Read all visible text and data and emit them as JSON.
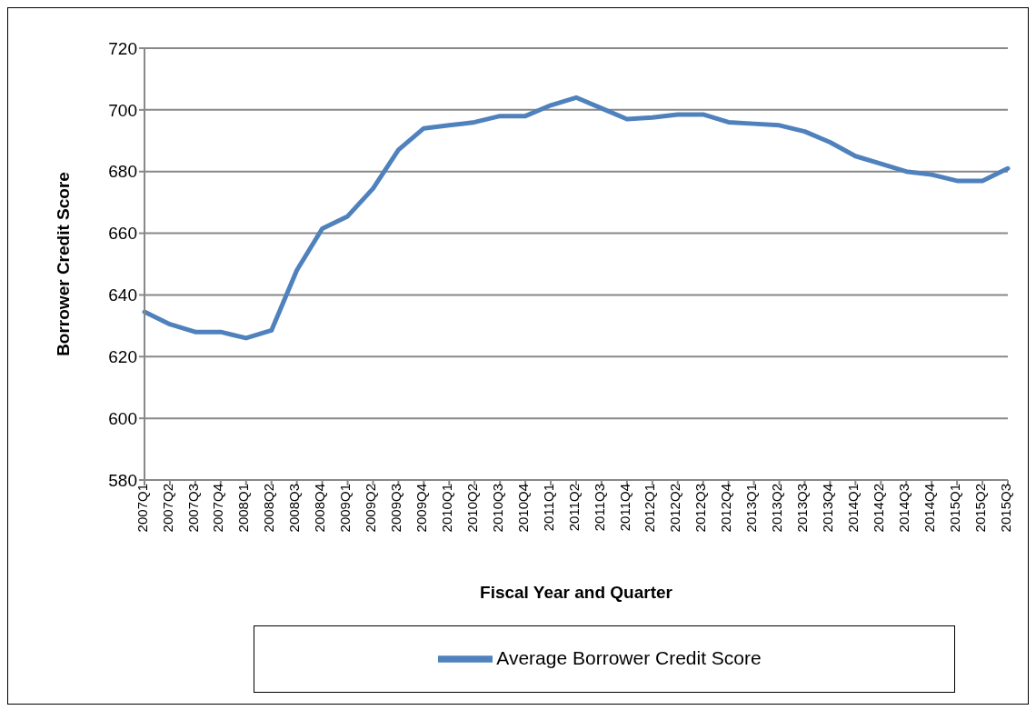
{
  "chart_data": {
    "type": "line",
    "xlabel": "Fiscal Year and Quarter",
    "ylabel": "Borrower Credit Score",
    "categories": [
      "2007Q1",
      "2007Q2",
      "2007Q3",
      "2007Q4",
      "2008Q1",
      "2008Q2",
      "2008Q3",
      "2008Q4",
      "2009Q1",
      "2009Q2",
      "2009Q3",
      "2009Q4",
      "2010Q1",
      "2010Q2",
      "2010Q3",
      "2010Q4",
      "2011Q1",
      "2011Q2",
      "2011Q3",
      "2011Q4",
      "2012Q1",
      "2012Q2",
      "2012Q3",
      "2012Q4",
      "2013Q1",
      "2013Q2",
      "2013Q3",
      "2013Q4",
      "2014Q1",
      "2014Q2",
      "2014Q3",
      "2014Q4",
      "2015Q1",
      "2015Q2",
      "2015Q3"
    ],
    "series": [
      {
        "name": "Average Borrower Credit Score",
        "color": "#4f81bd",
        "values": [
          634.5,
          630.5,
          628,
          628,
          626,
          628.5,
          648,
          661.5,
          665.5,
          674.5,
          687,
          694,
          695,
          696,
          698,
          698,
          701.5,
          704,
          700.5,
          697,
          697.5,
          698.5,
          698.5,
          696,
          695.5,
          695,
          693,
          689.5,
          685,
          682.5,
          680,
          679,
          677,
          677,
          681
        ]
      }
    ],
    "ylim": [
      580,
      720
    ],
    "yticks": [
      580,
      600,
      620,
      640,
      660,
      680,
      700,
      720
    ],
    "grid": "y",
    "legend": "bottom",
    "marker": "none",
    "line_style": "solid"
  }
}
